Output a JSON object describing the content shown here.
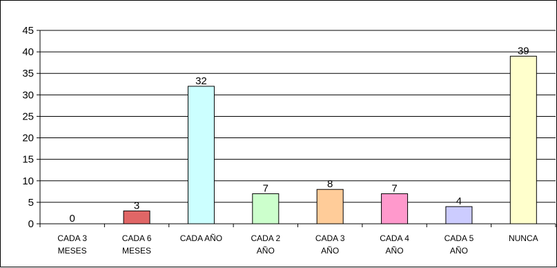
{
  "chart_data": {
    "type": "bar",
    "title": "",
    "xlabel": "",
    "ylabel": "",
    "categories": [
      [
        "CADA 3",
        "MESES"
      ],
      [
        "CADA 6",
        "MESES"
      ],
      [
        "CADA AÑO"
      ],
      [
        "CADA 2",
        "AÑO"
      ],
      [
        "CADA 3",
        "AÑO"
      ],
      [
        "CADA 4",
        "AÑO"
      ],
      [
        "CADA 5",
        "AÑO"
      ],
      [
        "NUNCA"
      ]
    ],
    "values": [
      0,
      3,
      32,
      7,
      8,
      7,
      4,
      39
    ],
    "data_labels": [
      "0",
      "3",
      "32",
      "7",
      "8",
      "7",
      "4",
      "39"
    ],
    "colors": [
      "#ffffcc",
      "#e06666",
      "#ccffff",
      "#ccffcc",
      "#ffcc99",
      "#ff99cc",
      "#ccccff",
      "#ffffcc"
    ],
    "ylim": [
      0,
      45
    ],
    "yticks": [
      0,
      5,
      10,
      15,
      20,
      25,
      30,
      35,
      40,
      45
    ],
    "grid": true,
    "legend": "none"
  }
}
